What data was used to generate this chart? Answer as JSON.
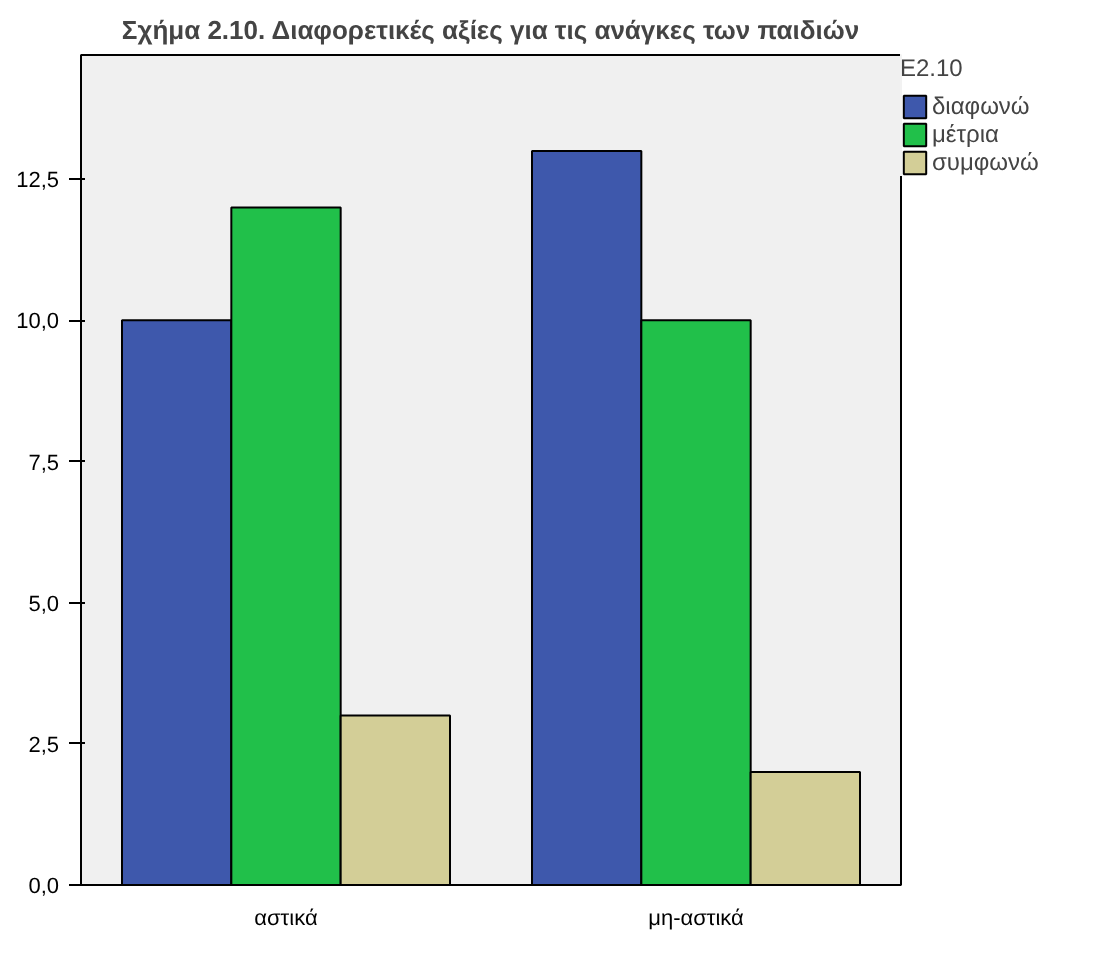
{
  "chart_data": {
    "type": "bar",
    "title": "Σχήμα 2.10. Διαφορετικές αξίες για τις ανάγκες των παιδιών",
    "legend_title": "E2.10",
    "categories": [
      "αστικά",
      "μη-αστικά"
    ],
    "series": [
      {
        "name": "διαφωνώ",
        "color": "#3e58ac",
        "values": [
          10,
          13
        ]
      },
      {
        "name": "μέτρια",
        "color": "#21c04a",
        "values": [
          12,
          10
        ]
      },
      {
        "name": "συμφωνώ",
        "color": "#d3ce97",
        "values": [
          3,
          2
        ]
      }
    ],
    "ylim": [
      0,
      14.7
    ],
    "yticks": [
      {
        "value": 0,
        "label": "0,0"
      },
      {
        "value": 2.5,
        "label": "2,5"
      },
      {
        "value": 5,
        "label": "5,0"
      },
      {
        "value": 7.5,
        "label": "7,5"
      },
      {
        "value": 10,
        "label": "10,0"
      },
      {
        "value": 12.5,
        "label": "12,5"
      }
    ],
    "grid": false,
    "legend": "top right"
  }
}
